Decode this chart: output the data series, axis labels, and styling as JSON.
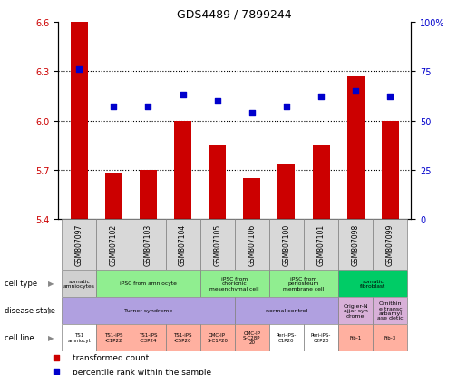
{
  "title": "GDS4489 / 7899244",
  "samples": [
    "GSM807097",
    "GSM807102",
    "GSM807103",
    "GSM807104",
    "GSM807105",
    "GSM807106",
    "GSM807100",
    "GSM807101",
    "GSM807098",
    "GSM807099"
  ],
  "bar_values": [
    6.6,
    5.68,
    5.7,
    6.0,
    5.85,
    5.65,
    5.73,
    5.85,
    6.27,
    6.0
  ],
  "percentile_values": [
    76,
    57,
    57,
    63,
    60,
    54,
    57,
    62,
    65,
    62
  ],
  "ylim_left": [
    5.4,
    6.6
  ],
  "yticks_left": [
    5.4,
    5.7,
    6.0,
    6.3,
    6.6
  ],
  "ylim_right": [
    0,
    100
  ],
  "yticks_right": [
    0,
    25,
    50,
    75,
    100
  ],
  "bar_color": "#cc0000",
  "dot_color": "#0000cc",
  "cell_type_groups": [
    {
      "label": "somatic\namniocytes",
      "start": 0,
      "end": 0,
      "color": "#d0d0d0"
    },
    {
      "label": "iPSC from amniocyte",
      "start": 1,
      "end": 3,
      "color": "#90ee90"
    },
    {
      "label": "iPSC from\nchorionic\nmesenchymal cell",
      "start": 4,
      "end": 5,
      "color": "#90ee90"
    },
    {
      "label": "iPSC from\nperiosteum\nmembrane cell",
      "start": 6,
      "end": 7,
      "color": "#90ee90"
    },
    {
      "label": "somatic\nfibroblast",
      "start": 8,
      "end": 9,
      "color": "#00cc66"
    }
  ],
  "disease_state_groups": [
    {
      "label": "Turner syndrome",
      "start": 0,
      "end": 4,
      "color": "#b0a0e0"
    },
    {
      "label": "normal control",
      "start": 5,
      "end": 7,
      "color": "#b0a0e0"
    },
    {
      "label": "Crigler-N\najjar syn\ndrome",
      "start": 8,
      "end": 8,
      "color": "#d8b0d8"
    },
    {
      "label": "Ornithin\ne transc\narbamyl\nase detic",
      "start": 9,
      "end": 9,
      "color": "#d8b0d8"
    }
  ],
  "cell_line_groups": [
    {
      "label": "TS1\namniocyt",
      "start": 0,
      "end": 0,
      "color": "#ffffff"
    },
    {
      "label": "TS1-iPS\n-C1P22",
      "start": 1,
      "end": 1,
      "color": "#ffb0a0"
    },
    {
      "label": "TS1-iPS\n-C3P24",
      "start": 2,
      "end": 2,
      "color": "#ffb0a0"
    },
    {
      "label": "TS1-iPS\n-C5P20",
      "start": 3,
      "end": 3,
      "color": "#ffb0a0"
    },
    {
      "label": "CMC-IP\nS-C1P20",
      "start": 4,
      "end": 4,
      "color": "#ffb0a0"
    },
    {
      "label": "CMC-IP\nS-C28P\n20",
      "start": 5,
      "end": 5,
      "color": "#ffb0a0"
    },
    {
      "label": "Peri-iPS-\nC1P20",
      "start": 6,
      "end": 6,
      "color": "#ffffff"
    },
    {
      "label": "Peri-iPS-\nC2P20",
      "start": 7,
      "end": 7,
      "color": "#ffffff"
    },
    {
      "label": "Fib-1",
      "start": 8,
      "end": 8,
      "color": "#ffb0a0"
    },
    {
      "label": "Fib-3",
      "start": 9,
      "end": 9,
      "color": "#ffb0a0"
    }
  ],
  "row_labels": [
    "cell type",
    "disease state",
    "cell line"
  ],
  "legend_labels": [
    "transformed count",
    "percentile rank within the sample"
  ],
  "legend_colors": [
    "#cc0000",
    "#0000cc"
  ]
}
